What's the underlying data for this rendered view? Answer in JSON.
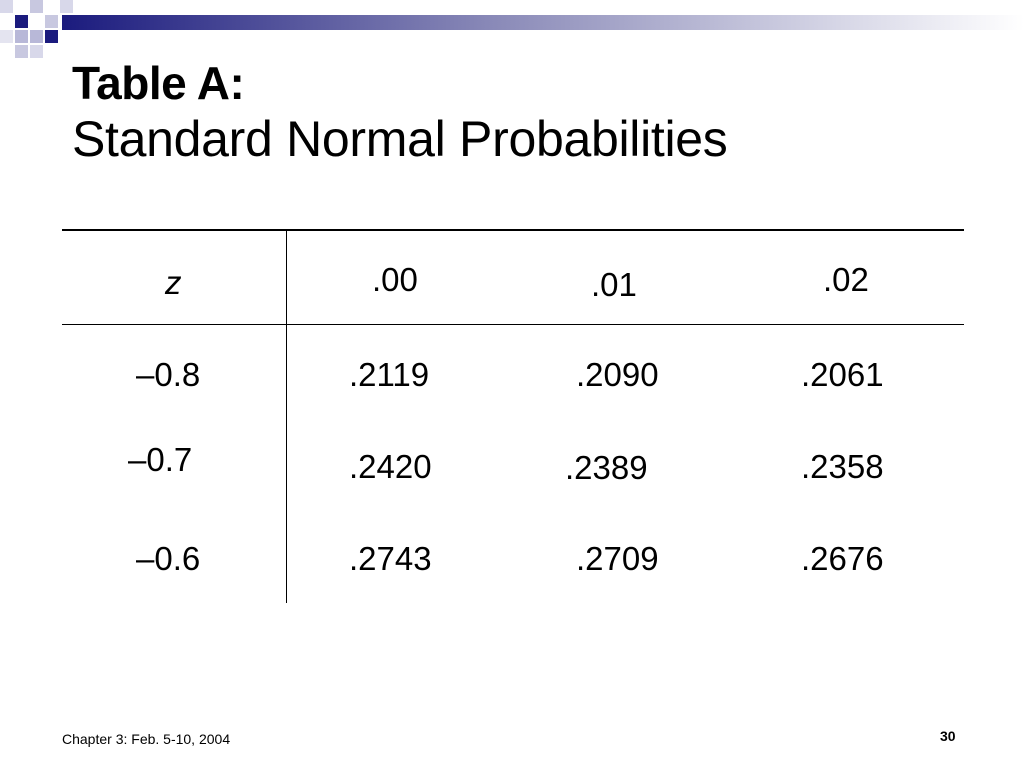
{
  "slide": {
    "title_main": "Table A:",
    "title_sub": "Standard Normal Probabilities"
  },
  "table": {
    "headers": [
      "z",
      ".00",
      ".01",
      ".02"
    ],
    "rows": [
      {
        "z": "–0.8",
        "values": [
          ".2119",
          ".2090",
          ".2061"
        ]
      },
      {
        "z": "–0.7",
        "values": [
          ".2420",
          ".2389",
          ".2358"
        ]
      },
      {
        "z": "–0.6",
        "values": [
          ".2743",
          ".2709",
          ".2676"
        ]
      }
    ]
  },
  "footer": {
    "left": "Chapter 3: Feb. 5-10, 2004",
    "page_number": "30"
  },
  "colors": {
    "accent": "#1b1b7e",
    "accent_light": "#b8b8d8",
    "text": "#000000",
    "background": "#ffffff"
  }
}
